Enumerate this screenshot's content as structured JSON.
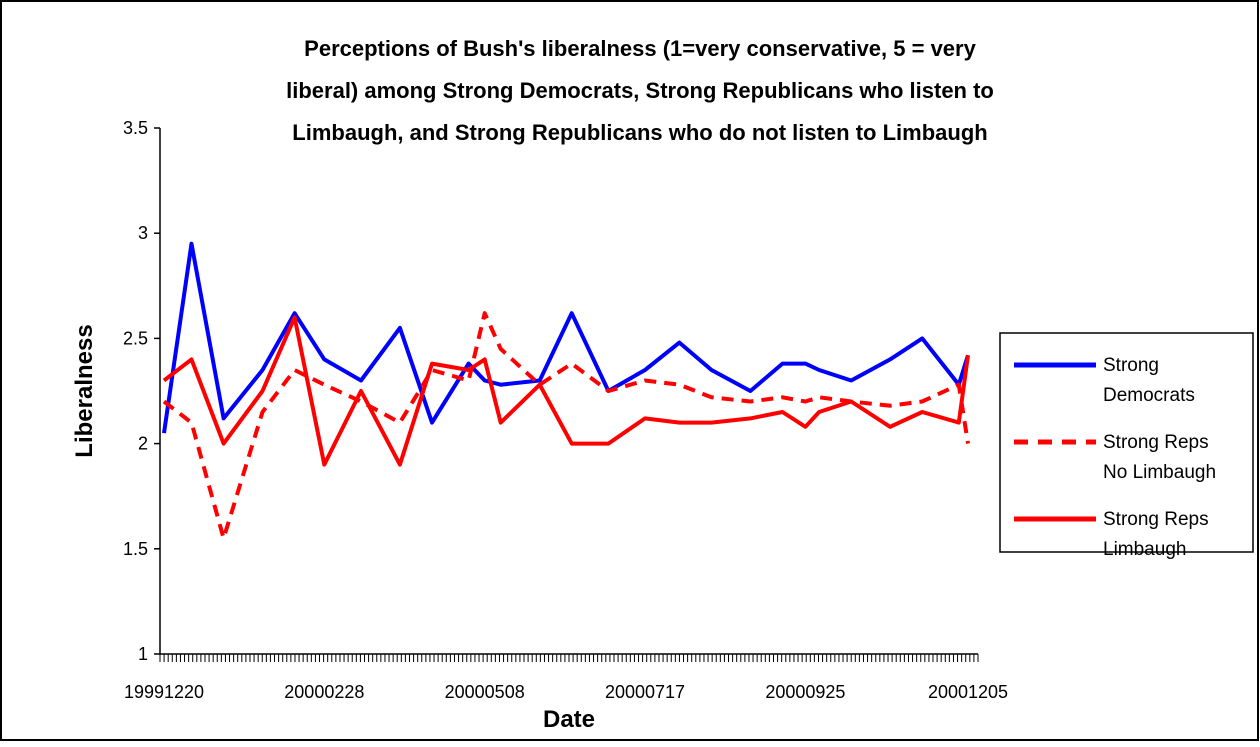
{
  "chart_data": {
    "type": "line",
    "title_lines": [
      "Perceptions of Bush's liberalness (1=very conservative, 5 = very",
      "liberal) among Strong Democrats, Strong Republicans who listen to",
      "Limbaugh, and Strong Republicans who do not listen to Limbaugh"
    ],
    "xlabel": "Date",
    "ylabel": "Liberalness",
    "ylim": [
      1,
      3.5
    ],
    "yticks": [
      "3.5",
      "3",
      "2.5",
      "2",
      "1.5",
      "1"
    ],
    "x_tick_labels": [
      "19991220",
      "20000228",
      "20000508",
      "20000717",
      "20000925",
      "20001205"
    ],
    "x_dates": [
      "19991220",
      "20000101",
      "20000115",
      "20000201",
      "20000215",
      "20000228",
      "20000315",
      "20000401",
      "20000415",
      "20000501",
      "20000508",
      "20000515",
      "20000601",
      "20000615",
      "20000701",
      "20000717",
      "20000801",
      "20000815",
      "20000901",
      "20000915",
      "20000925",
      "20001001",
      "20001015",
      "20001101",
      "20001115",
      "20001201",
      "20001205"
    ],
    "grid": false,
    "legend_position": "right",
    "series": [
      {
        "name_lines": [
          "Strong",
          "Democrats"
        ],
        "color": "#0000ff",
        "dash": "solid",
        "values": [
          2.05,
          2.95,
          2.12,
          2.35,
          2.62,
          2.4,
          2.3,
          2.55,
          2.1,
          2.38,
          2.3,
          2.28,
          2.3,
          2.62,
          2.25,
          2.35,
          2.48,
          2.35,
          2.25,
          2.38,
          2.38,
          2.35,
          2.3,
          2.4,
          2.5,
          2.28,
          2.42
        ]
      },
      {
        "name_lines": [
          "Strong Reps",
          "No Limbaugh"
        ],
        "color": "#ff0000",
        "dash": "dashed",
        "values": [
          2.2,
          2.1,
          1.55,
          2.15,
          2.35,
          2.28,
          2.2,
          2.1,
          2.35,
          2.3,
          2.62,
          2.45,
          2.28,
          2.38,
          2.25,
          2.3,
          2.28,
          2.22,
          2.2,
          2.22,
          2.2,
          2.22,
          2.2,
          2.18,
          2.2,
          2.28,
          2.0
        ]
      },
      {
        "name_lines": [
          "Strong Reps",
          "Limbaugh"
        ],
        "color": "#ff0000",
        "dash": "solid",
        "values": [
          2.3,
          2.4,
          2.0,
          2.25,
          2.6,
          1.9,
          2.25,
          1.9,
          2.38,
          2.35,
          2.4,
          2.1,
          2.28,
          2.0,
          2.0,
          2.12,
          2.1,
          2.1,
          2.12,
          2.15,
          2.08,
          2.15,
          2.2,
          2.08,
          2.15,
          2.1,
          2.42
        ]
      }
    ]
  }
}
